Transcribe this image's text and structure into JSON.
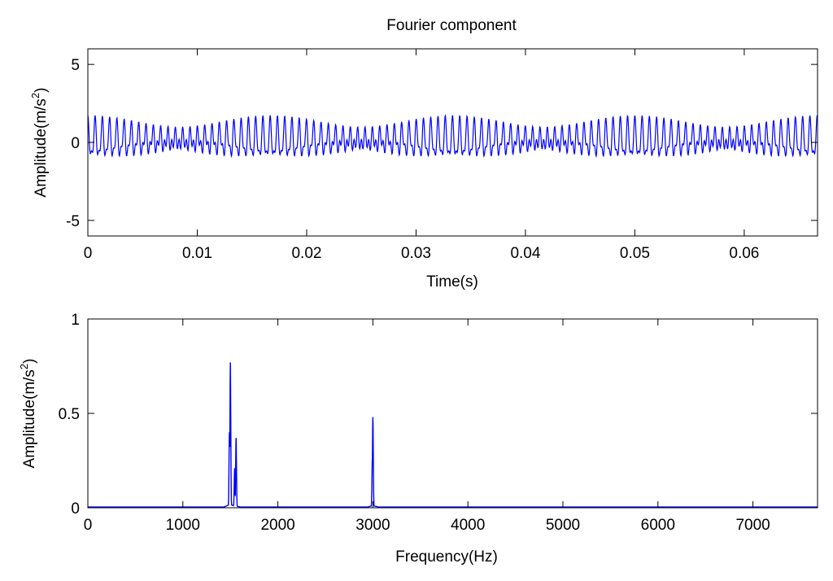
{
  "chart_data": [
    {
      "type": "line",
      "title": "Fourier component",
      "xlabel": "Time(s)",
      "ylabel_main": "Amplitude(m/s",
      "ylabel_sup": "2",
      "ylabel_end": ")",
      "xlim": [
        0,
        0.0667
      ],
      "ylim": [
        -6,
        6
      ],
      "xticks": [
        0,
        0.01,
        0.02,
        0.03,
        0.04,
        0.05,
        0.06
      ],
      "xtick_labels": [
        "0",
        "0.01",
        "0.02",
        "0.03",
        "0.04",
        "0.05",
        "0.06"
      ],
      "yticks": [
        -5,
        0,
        5
      ],
      "ytick_labels": [
        "-5",
        "0",
        "5"
      ],
      "grid": false,
      "line_color": "#0000ff",
      "signal": {
        "components": [
          {
            "freq_hz": 1500,
            "amplitude": 0.77
          },
          {
            "freq_hz": 1560,
            "amplitude": 0.37
          },
          {
            "freq_hz": 3000,
            "amplitude": 0.48
          }
        ],
        "approx_peak_range": [
          -1.1,
          1.6
        ]
      }
    },
    {
      "type": "line",
      "title": "",
      "xlabel": "Frequency(Hz)",
      "ylabel_main": "Amplitude(m/s",
      "ylabel_sup": "2",
      "ylabel_end": ")",
      "xlim": [
        0,
        7680
      ],
      "ylim": [
        0,
        1
      ],
      "xticks": [
        0,
        1000,
        2000,
        3000,
        4000,
        5000,
        6000,
        7000
      ],
      "xtick_labels": [
        "0",
        "1000",
        "2000",
        "3000",
        "4000",
        "5000",
        "6000",
        "7000"
      ],
      "yticks": [
        0,
        0.5,
        1
      ],
      "ytick_labels": [
        "0",
        "0.5",
        "1"
      ],
      "grid": false,
      "line_color": "#0000ff",
      "peaks": [
        {
          "x": 1500,
          "y": 0.77
        },
        {
          "x": 1490,
          "y": 0.4
        },
        {
          "x": 1560,
          "y": 0.37
        },
        {
          "x": 1545,
          "y": 0.21
        },
        {
          "x": 3000,
          "y": 0.48
        },
        {
          "x": 2995,
          "y": 0.28
        }
      ]
    }
  ]
}
